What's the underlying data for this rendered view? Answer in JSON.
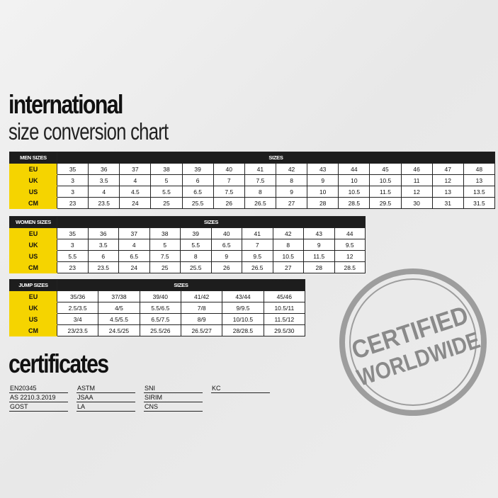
{
  "title": "international",
  "subtitle": "size conversion chart",
  "tables": [
    {
      "corner": "MEN SIZES",
      "header": "SIZES",
      "rows": [
        {
          "label": "EU",
          "values": [
            "35",
            "36",
            "37",
            "38",
            "39",
            "40",
            "41",
            "42",
            "43",
            "44",
            "45",
            "46",
            "47",
            "48"
          ]
        },
        {
          "label": "UK",
          "values": [
            "3",
            "3.5",
            "4",
            "5",
            "6",
            "7",
            "7.5",
            "8",
            "9",
            "10",
            "10.5",
            "11",
            "12",
            "13"
          ]
        },
        {
          "label": "US",
          "values": [
            "3",
            "4",
            "4.5",
            "5.5",
            "6.5",
            "7.5",
            "8",
            "9",
            "10",
            "10.5",
            "11.5",
            "12",
            "13",
            "13.5"
          ]
        },
        {
          "label": "CM",
          "values": [
            "23",
            "23.5",
            "24",
            "25",
            "25.5",
            "26",
            "26.5",
            "27",
            "28",
            "28.5",
            "29.5",
            "30",
            "31",
            "31.5"
          ]
        }
      ]
    },
    {
      "corner": "WOMEN SIZES",
      "header": "SIZES",
      "rows": [
        {
          "label": "EU",
          "values": [
            "35",
            "36",
            "37",
            "38",
            "39",
            "40",
            "41",
            "42",
            "43",
            "44"
          ]
        },
        {
          "label": "UK",
          "values": [
            "3",
            "3.5",
            "4",
            "5",
            "5.5",
            "6.5",
            "7",
            "8",
            "9",
            "9.5"
          ]
        },
        {
          "label": "US",
          "values": [
            "5.5",
            "6",
            "6.5",
            "7.5",
            "8",
            "9",
            "9.5",
            "10.5",
            "11.5",
            "12"
          ]
        },
        {
          "label": "CM",
          "values": [
            "23",
            "23.5",
            "24",
            "25",
            "25.5",
            "26",
            "26.5",
            "27",
            "28",
            "28.5"
          ]
        }
      ]
    },
    {
      "corner": "JUMP SIZES",
      "header": "SIZES",
      "rows": [
        {
          "label": "EU",
          "values": [
            "35/36",
            "37/38",
            "39/40",
            "41/42",
            "43/44",
            "45/46"
          ]
        },
        {
          "label": "UK",
          "values": [
            "2.5/3.5",
            "4/5",
            "5.5/6.5",
            "7/8",
            "9/9.5",
            "10.5/11"
          ]
        },
        {
          "label": "US",
          "values": [
            "3/4",
            "4.5/5.5",
            "6.5/7.5",
            "8/9",
            "10/10.5",
            "11.5/12"
          ]
        },
        {
          "label": "CM",
          "values": [
            "23/23.5",
            "24.5/25",
            "25.5/26",
            "26.5/27",
            "28/28.5",
            "29.5/30"
          ]
        }
      ]
    }
  ],
  "certificates_title": "certificates",
  "certificates": [
    [
      "EN20345",
      "AS 2210.3.2019",
      "GOST"
    ],
    [
      "ASTM",
      "JSAA",
      "LA"
    ],
    [
      "SNI",
      "SIRIM",
      "CNS"
    ],
    [
      "KC"
    ]
  ],
  "stamp": {
    "line1": "CERTIFIED",
    "line2": "WORLDWIDE"
  },
  "colors": {
    "accent": "#f5d400",
    "header": "#1d1d1d",
    "stamp": "#8a8a8a"
  }
}
